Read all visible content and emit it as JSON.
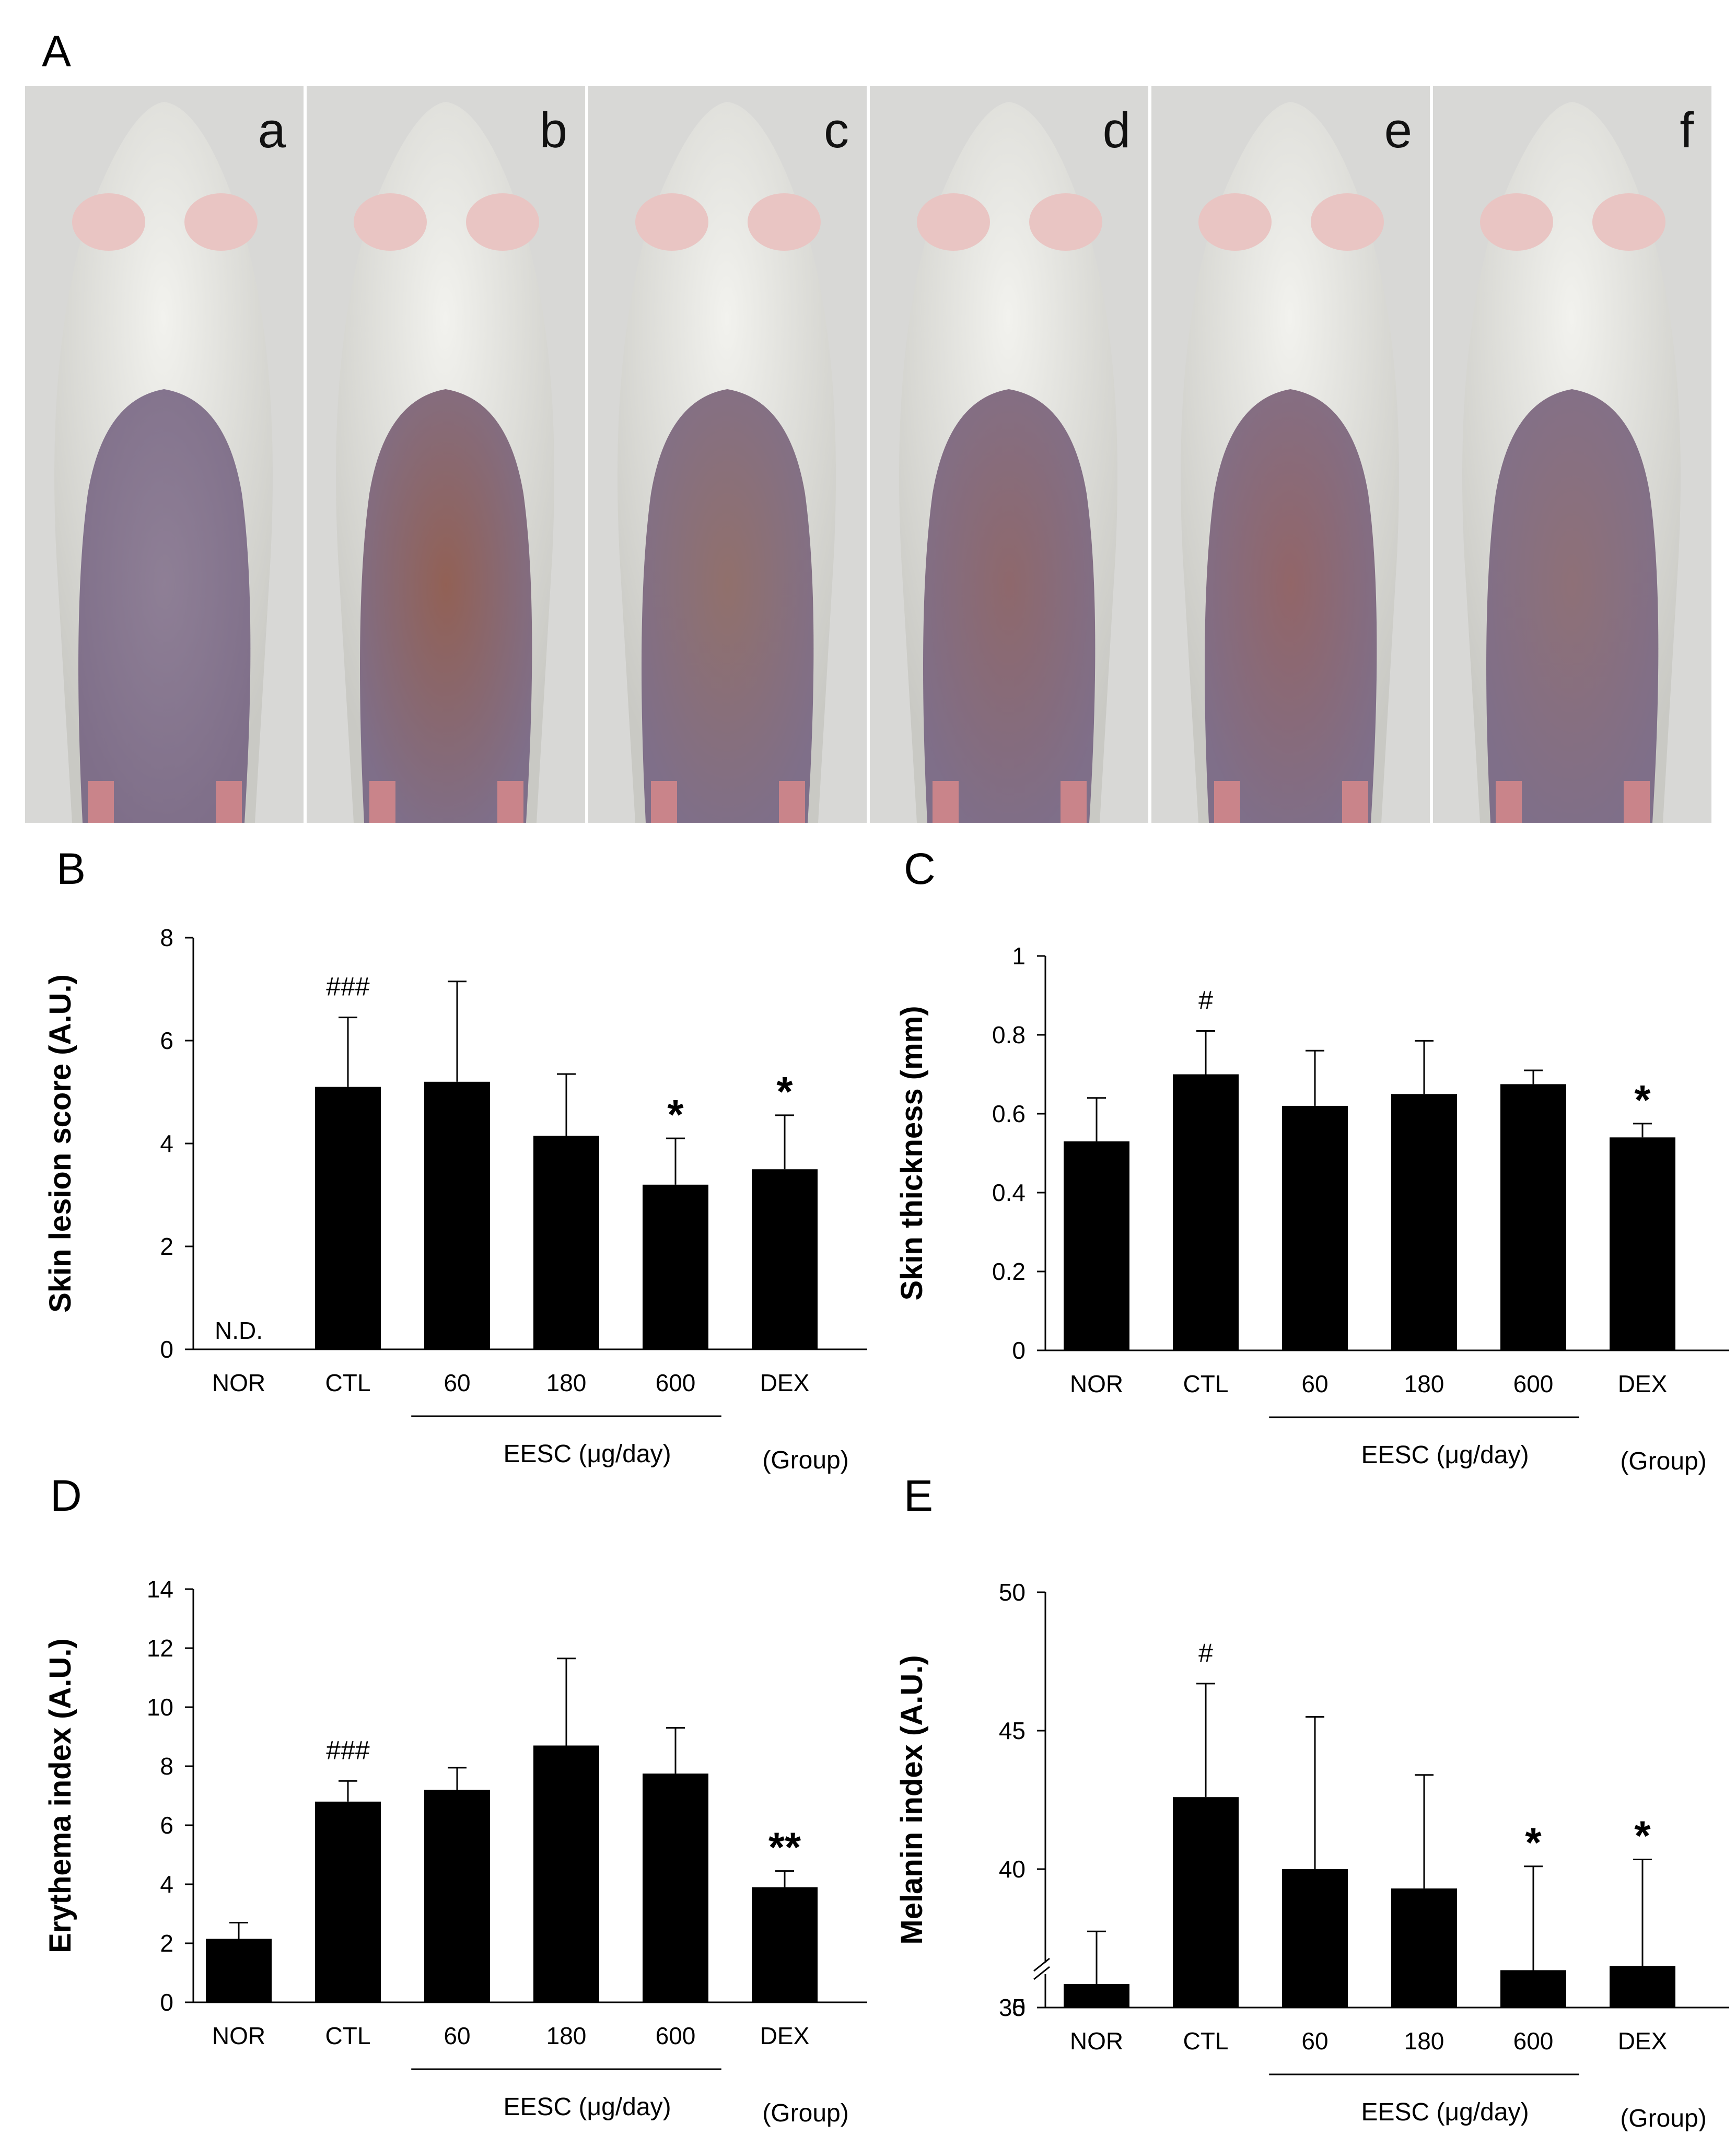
{
  "figure": {
    "panel_labels": [
      "A",
      "B",
      "C",
      "D",
      "E"
    ],
    "photo_labels": [
      "a",
      "b",
      "c",
      "d",
      "e",
      "f"
    ]
  },
  "chart_data": [
    {
      "panel": "B",
      "type": "bar",
      "ylabel": "Skin lesion score (A.U.)",
      "categories": [
        "NOR",
        "CTL",
        "60",
        "180",
        "600",
        "DEX"
      ],
      "values": [
        0,
        5.1,
        5.2,
        4.15,
        3.2,
        3.5
      ],
      "errors": [
        0,
        1.35,
        1.95,
        1.2,
        0.9,
        1.05
      ],
      "annotations": [
        "N.D.",
        "###",
        "",
        "",
        "*",
        "*"
      ],
      "ylim": [
        0,
        8
      ],
      "yticks": [
        0,
        2,
        4,
        6,
        8
      ],
      "group_label": "EESC (μg/day)",
      "group_span": [
        2,
        4
      ],
      "group_axis_label": "(Group)"
    },
    {
      "panel": "C",
      "type": "bar",
      "ylabel": "Skin thickness (mm)",
      "categories": [
        "NOR",
        "CTL",
        "60",
        "180",
        "600",
        "DEX"
      ],
      "values": [
        0.53,
        0.7,
        0.62,
        0.65,
        0.675,
        0.54
      ],
      "errors": [
        0.11,
        0.11,
        0.14,
        0.135,
        0.035,
        0.035
      ],
      "annotations": [
        "",
        "#",
        "",
        "",
        "",
        "*"
      ],
      "ylim": [
        0,
        1
      ],
      "yticks": [
        0,
        0.2,
        0.4,
        0.6,
        0.8,
        1
      ],
      "yticklabels": [
        "0",
        "0.2",
        "0.4",
        "0.6",
        "0.8",
        "1"
      ],
      "group_label": "EESC (μg/day)",
      "group_span": [
        2,
        4
      ],
      "group_axis_label": "(Group)"
    },
    {
      "panel": "D",
      "type": "bar",
      "ylabel": "Erythema index (A.U.)",
      "categories": [
        "NOR",
        "CTL",
        "60",
        "180",
        "600",
        "DEX"
      ],
      "values": [
        2.15,
        6.8,
        7.2,
        8.7,
        7.75,
        3.9
      ],
      "errors": [
        0.55,
        0.7,
        0.75,
        2.95,
        1.55,
        0.55
      ],
      "annotations": [
        "",
        "###",
        "",
        "",
        "",
        "**"
      ],
      "ylim": [
        0,
        14
      ],
      "yticks": [
        0,
        2,
        4,
        6,
        8,
        10,
        12,
        14
      ],
      "group_label": "EESC (μg/day)",
      "group_span": [
        2,
        4
      ],
      "group_axis_label": "(Group)"
    },
    {
      "panel": "E",
      "type": "bar",
      "ylabel": "Melanin index (A.U.)",
      "categories": [
        "NOR",
        "CTL",
        "60",
        "180",
        "600",
        "DEX"
      ],
      "values": [
        35.85,
        42.6,
        40.0,
        39.3,
        36.35,
        36.5
      ],
      "errors": [
        1.9,
        4.1,
        5.5,
        4.1,
        3.75,
        3.85
      ],
      "annotations": [
        "",
        "#",
        "",
        "",
        "*",
        "*"
      ],
      "ylim": [
        35,
        50
      ],
      "axis_break": true,
      "yticks": [
        0,
        35,
        40,
        45,
        50
      ],
      "group_label": "EESC (μg/day)",
      "group_span": [
        2,
        4
      ],
      "group_axis_label": "(Group)"
    }
  ]
}
